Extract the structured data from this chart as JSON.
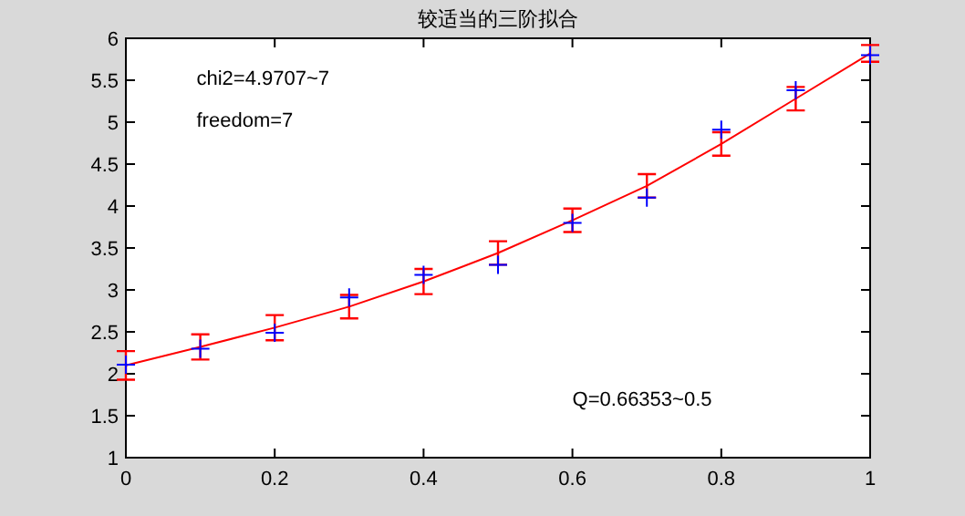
{
  "chart_data": {
    "type": "line",
    "title": "较适当的三阶拟合",
    "xlim": [
      0,
      1
    ],
    "xticks": [
      0,
      0.2,
      0.4,
      0.6,
      0.8,
      1
    ],
    "ylim": [
      1,
      6
    ],
    "yticks": [
      1,
      1.5,
      2,
      2.5,
      3,
      3.5,
      4,
      4.5,
      5,
      5.5,
      6
    ],
    "grid": false,
    "series": [
      {
        "color": "#ff0000",
        "marker": "none",
        "x": [
          0,
          0.1,
          0.2,
          0.3,
          0.4,
          0.5,
          0.6,
          0.7,
          0.8,
          0.9,
          1
        ],
        "values": [
          2.1,
          2.32,
          2.55,
          2.8,
          3.1,
          3.44,
          3.83,
          4.24,
          4.74,
          5.28,
          5.82
        ]
      },
      {
        "type": "scatter",
        "color": "#ff0000",
        "x": [
          0,
          0.1,
          0.2,
          0.3,
          0.4,
          0.5,
          0.6,
          0.7,
          0.8,
          0.9,
          1
        ],
        "values": [
          2.1,
          2.32,
          2.55,
          2.8,
          3.1,
          3.44,
          3.83,
          4.24,
          4.74,
          5.28,
          5.82
        ],
        "errors": [
          0.17,
          0.15,
          0.15,
          0.14,
          0.15,
          0.14,
          0.14,
          0.14,
          0.14,
          0.14,
          0.1
        ]
      },
      {
        "type": "scatter",
        "color": "#0000ff",
        "marker": "cross",
        "x": [
          0,
          0.1,
          0.2,
          0.3,
          0.4,
          0.5,
          0.6,
          0.7,
          0.8,
          0.9,
          1
        ],
        "values": [
          2.11,
          2.3,
          2.49,
          2.91,
          3.18,
          3.3,
          3.8,
          4.1,
          4.91,
          5.38,
          5.8
        ]
      }
    ],
    "annotations": [
      "chi2=4.9707~7",
      "freedom=7",
      "Q=0.66353~0.5"
    ]
  }
}
